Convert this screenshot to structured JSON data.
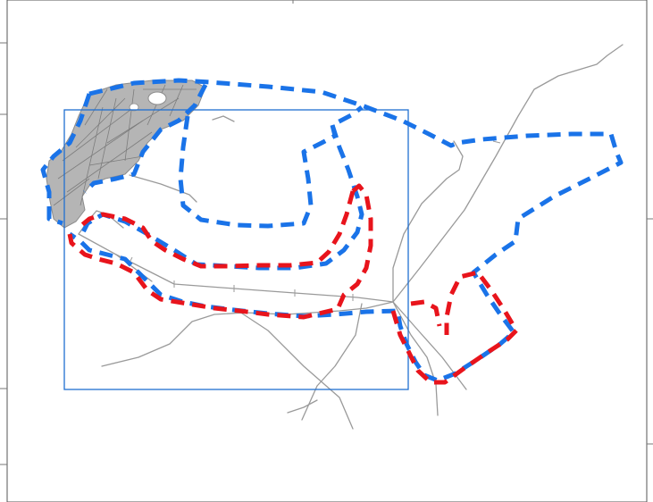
{
  "map": {
    "background": "#ffffff",
    "frame_color": "#555555",
    "tick_color": "#777777",
    "road_color": "#9a9a9a",
    "urban_color": "#8c8c8c",
    "extent_box_color": "#1f6fd1",
    "route_blue_color": "#1a73e8",
    "route_red_color": "#e8141c"
  },
  "layers": [
    {
      "id": "roads",
      "visible": true
    },
    {
      "id": "urban-area",
      "visible": true
    },
    {
      "id": "extent-box",
      "visible": true
    },
    {
      "id": "blue-dashed-route",
      "visible": true
    },
    {
      "id": "red-dashed-route",
      "visible": true
    }
  ]
}
